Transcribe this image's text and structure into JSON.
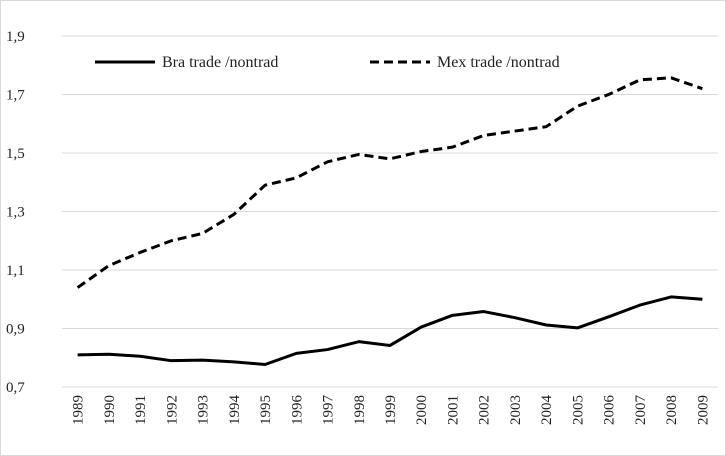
{
  "chart_data": {
    "type": "line",
    "categories": [
      "1989",
      "1990",
      "1991",
      "1992",
      "1993",
      "1994",
      "1995",
      "1996",
      "1997",
      "1998",
      "1999",
      "2000",
      "2001",
      "2002",
      "2003",
      "2004",
      "2005",
      "2006",
      "2007",
      "2008",
      "2009"
    ],
    "series": [
      {
        "name": "Bra trade /nontrad",
        "color": "#000000",
        "dash": false,
        "values": [
          0.81,
          0.812,
          0.805,
          0.79,
          0.792,
          0.786,
          0.777,
          0.815,
          0.828,
          0.855,
          0.842,
          0.905,
          0.945,
          0.958,
          0.937,
          0.912,
          0.902,
          0.94,
          0.98,
          1.008,
          1.0
        ]
      },
      {
        "name": "Mex trade /nontrad",
        "color": "#000000",
        "dash": true,
        "values": [
          1.04,
          1.115,
          1.16,
          1.2,
          1.225,
          1.29,
          1.39,
          1.415,
          1.47,
          1.495,
          1.48,
          1.505,
          1.52,
          1.56,
          1.575,
          1.59,
          1.66,
          1.7,
          1.75,
          1.757,
          1.72
        ]
      }
    ],
    "ylim": [
      0.7,
      1.9
    ],
    "yticks": [
      {
        "value": 0.7,
        "label": "0,7"
      },
      {
        "value": 0.9,
        "label": "0,9"
      },
      {
        "value": 1.1,
        "label": "1,1"
      },
      {
        "value": 1.3,
        "label": "1,3"
      },
      {
        "value": 1.5,
        "label": "1,5"
      },
      {
        "value": 1.7,
        "label": "1,7"
      },
      {
        "value": 1.9,
        "label": "1,9"
      }
    ],
    "grid": true,
    "legend": "top"
  }
}
